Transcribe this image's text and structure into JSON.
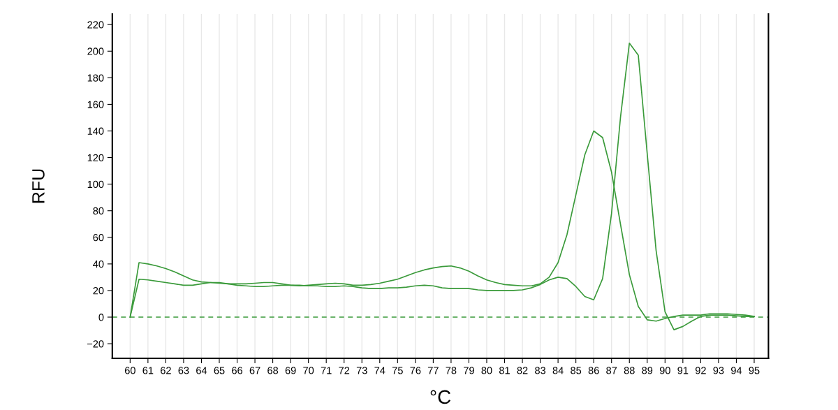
{
  "chart_data": {
    "type": "line",
    "xlabel": "°C",
    "ylabel": "RFU",
    "x": [
      60,
      60.5,
      61,
      61.5,
      62,
      62.5,
      63,
      63.5,
      64,
      64.5,
      65,
      65.5,
      66,
      66.5,
      67,
      67.5,
      68,
      68.5,
      69,
      69.5,
      70,
      70.5,
      71,
      71.5,
      72,
      72.5,
      73,
      73.5,
      74,
      74.5,
      75,
      75.5,
      76,
      76.5,
      77,
      77.5,
      78,
      78.5,
      79,
      79.5,
      80,
      80.5,
      81,
      81.5,
      82,
      82.5,
      83,
      83.5,
      84,
      84.5,
      85,
      85.5,
      86,
      86.5,
      87,
      87.5,
      88,
      88.5,
      89,
      89.5,
      90,
      90.5,
      91,
      91.5,
      92,
      92.5,
      93,
      93.5,
      94,
      94.5,
      95
    ],
    "series": [
      {
        "color": "#3a9a3a",
        "values": [
          0,
          41,
          40,
          38.5,
          36.5,
          34,
          31,
          28,
          26.5,
          26,
          25.5,
          25,
          25,
          25,
          25.5,
          26,
          26,
          25,
          24,
          23.5,
          24,
          24.5,
          25,
          25.5,
          25,
          24,
          24,
          24.5,
          25.5,
          27,
          28.5,
          31,
          33.5,
          35.5,
          37,
          38,
          38.5,
          37,
          34.5,
          31,
          28,
          26,
          24.5,
          24,
          23.5,
          23.5,
          25,
          30,
          41,
          62,
          92,
          122,
          140,
          135,
          109,
          70,
          32,
          8,
          -2,
          -3,
          -1,
          0.5,
          1.5,
          1.5,
          1.5,
          2.5,
          2.5,
          2.5,
          2,
          1.5,
          0.5
        ]
      },
      {
        "color": "#3a9a3a",
        "values": [
          0,
          28.5,
          28,
          27,
          26,
          25,
          24,
          24,
          25,
          26,
          26,
          25,
          24,
          23.5,
          23,
          23,
          23.5,
          24,
          24,
          24,
          23.5,
          23.5,
          23,
          23,
          23.5,
          23,
          22,
          21.5,
          21.5,
          22,
          22,
          22.5,
          23.5,
          24,
          23.5,
          22,
          21.5,
          21.5,
          21.5,
          20.5,
          20,
          20,
          20,
          20,
          20.5,
          22,
          24.5,
          28,
          30,
          29,
          23,
          15.5,
          13,
          29,
          78,
          150,
          206,
          197,
          123,
          50,
          4,
          -9.5,
          -7,
          -3,
          0.5,
          1.5,
          1.5,
          1.5,
          1,
          0.5,
          0.5
        ]
      }
    ],
    "xlim": [
      59,
      95.8
    ],
    "xticks": [
      60,
      61,
      62,
      63,
      64,
      65,
      66,
      67,
      68,
      69,
      70,
      71,
      72,
      73,
      74,
      75,
      76,
      77,
      78,
      79,
      80,
      81,
      82,
      83,
      84,
      85,
      86,
      87,
      88,
      89,
      90,
      91,
      92,
      93,
      94,
      95
    ],
    "ylim": [
      -31,
      228
    ],
    "yticks": [
      {
        "value": -20,
        "label": "−20"
      },
      0,
      20,
      40,
      60,
      80,
      100,
      120,
      140,
      160,
      180,
      200,
      220
    ],
    "ref_lines": [
      {
        "axis": "y",
        "value": 0,
        "color": "#3a9a3a",
        "line_style": "dashed"
      }
    ],
    "grid": "x",
    "marker": "none",
    "line_style": "solid"
  }
}
